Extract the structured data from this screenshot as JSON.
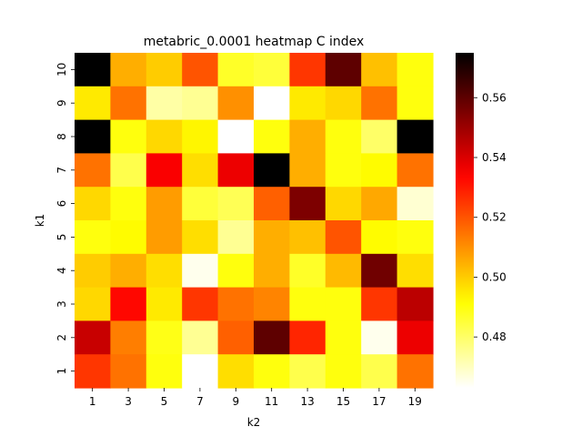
{
  "chart_data": {
    "type": "heatmap",
    "title": "metabric_0.0001 heatmap C index",
    "xlabel": "k2",
    "ylabel": "k1",
    "x_categories": [
      "1",
      "3",
      "5",
      "7",
      "9",
      "11",
      "13",
      "15",
      "17",
      "19"
    ],
    "y_categories": [
      "10",
      "9",
      "8",
      "7",
      "6",
      "5",
      "4",
      "3",
      "2",
      "1"
    ],
    "values": [
      [
        0.575,
        0.505,
        0.5,
        0.52,
        0.487,
        0.485,
        0.525,
        0.56,
        0.502,
        0.49
      ],
      [
        0.495,
        0.515,
        0.473,
        0.475,
        0.51,
        0.463,
        0.495,
        0.498,
        0.515,
        0.49
      ],
      [
        0.575,
        0.49,
        0.498,
        0.493,
        0.463,
        0.49,
        0.505,
        0.49,
        0.48,
        0.575
      ],
      [
        0.515,
        0.483,
        0.535,
        0.497,
        0.537,
        0.575,
        0.505,
        0.49,
        0.492,
        0.515
      ],
      [
        0.498,
        0.49,
        0.508,
        0.485,
        0.482,
        0.518,
        0.555,
        0.498,
        0.506,
        0.468
      ],
      [
        0.49,
        0.492,
        0.508,
        0.497,
        0.475,
        0.505,
        0.502,
        0.52,
        0.492,
        0.49
      ],
      [
        0.5,
        0.505,
        0.497,
        0.465,
        0.49,
        0.505,
        0.487,
        0.503,
        0.557,
        0.497
      ],
      [
        0.498,
        0.533,
        0.495,
        0.525,
        0.515,
        0.512,
        0.49,
        0.49,
        0.525,
        0.545
      ],
      [
        0.543,
        0.513,
        0.489,
        0.475,
        0.518,
        0.56,
        0.528,
        0.49,
        0.465,
        0.537
      ],
      [
        0.525,
        0.515,
        0.49,
        0.462,
        0.497,
        0.49,
        0.483,
        0.49,
        0.483,
        0.515
      ]
    ],
    "colormap": "hot_r",
    "vmin": 0.463,
    "vmax": 0.575,
    "colorbar_ticks": [
      0.48,
      0.5,
      0.52,
      0.54,
      0.56
    ],
    "colorbar_tick_labels": [
      "0.48",
      "0.50",
      "0.52",
      "0.54",
      "0.56"
    ]
  }
}
